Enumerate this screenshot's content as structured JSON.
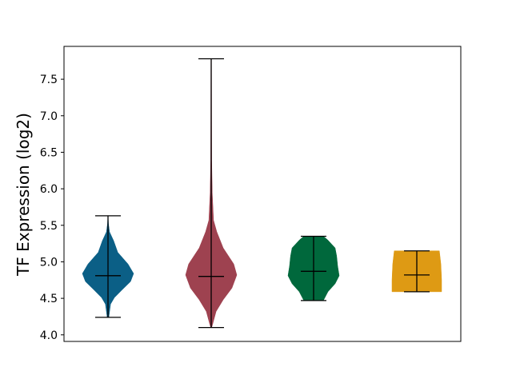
{
  "chart_data": {
    "type": "violin",
    "ylabel": "TF Expression (log2)",
    "xlabel": "",
    "ylim": [
      3.91,
      7.95
    ],
    "yticks": [
      "4.0",
      "4.5",
      "5.0",
      "5.5",
      "6.0",
      "6.5",
      "7.0",
      "7.5"
    ],
    "grid": false,
    "series": [
      {
        "color": "#0b5f86",
        "min": 4.24,
        "max": 5.63,
        "median": 4.81,
        "density": [
          [
            4.24,
            0.03
          ],
          [
            4.42,
            0.1
          ],
          [
            4.51,
            0.25
          ],
          [
            4.62,
            0.56
          ],
          [
            4.73,
            0.88
          ],
          [
            4.84,
            1.0
          ],
          [
            4.97,
            0.78
          ],
          [
            5.13,
            0.38
          ],
          [
            5.29,
            0.22
          ],
          [
            5.41,
            0.06
          ],
          [
            5.52,
            0.02
          ],
          [
            5.63,
            0.0
          ]
        ]
      },
      {
        "color": "#9e4250",
        "min": 4.1,
        "max": 7.78,
        "median": 4.8,
        "density": [
          [
            4.1,
            0.02
          ],
          [
            4.15,
            0.06
          ],
          [
            4.32,
            0.19
          ],
          [
            4.48,
            0.47
          ],
          [
            4.64,
            0.81
          ],
          [
            4.82,
            1.0
          ],
          [
            4.97,
            0.88
          ],
          [
            5.19,
            0.47
          ],
          [
            5.41,
            0.22
          ],
          [
            5.57,
            0.09
          ],
          [
            5.95,
            0.04
          ],
          [
            6.4,
            0.02
          ],
          [
            7.78,
            0.01
          ]
        ]
      },
      {
        "color": "#00683c",
        "min": 4.47,
        "max": 5.35,
        "median": 4.87,
        "density": [
          [
            4.47,
            0.38
          ],
          [
            4.59,
            0.56
          ],
          [
            4.7,
            0.84
          ],
          [
            4.81,
            1.0
          ],
          [
            4.94,
            0.94
          ],
          [
            5.08,
            0.9
          ],
          [
            5.19,
            0.84
          ],
          [
            5.3,
            0.55
          ],
          [
            5.35,
            0.38
          ]
        ]
      },
      {
        "color": "#de9a14",
        "min": 4.59,
        "max": 5.15,
        "median": 4.82,
        "density": [
          [
            4.59,
            0.97
          ],
          [
            4.75,
            0.97
          ],
          [
            4.97,
            0.94
          ],
          [
            5.15,
            0.88
          ]
        ]
      }
    ]
  }
}
